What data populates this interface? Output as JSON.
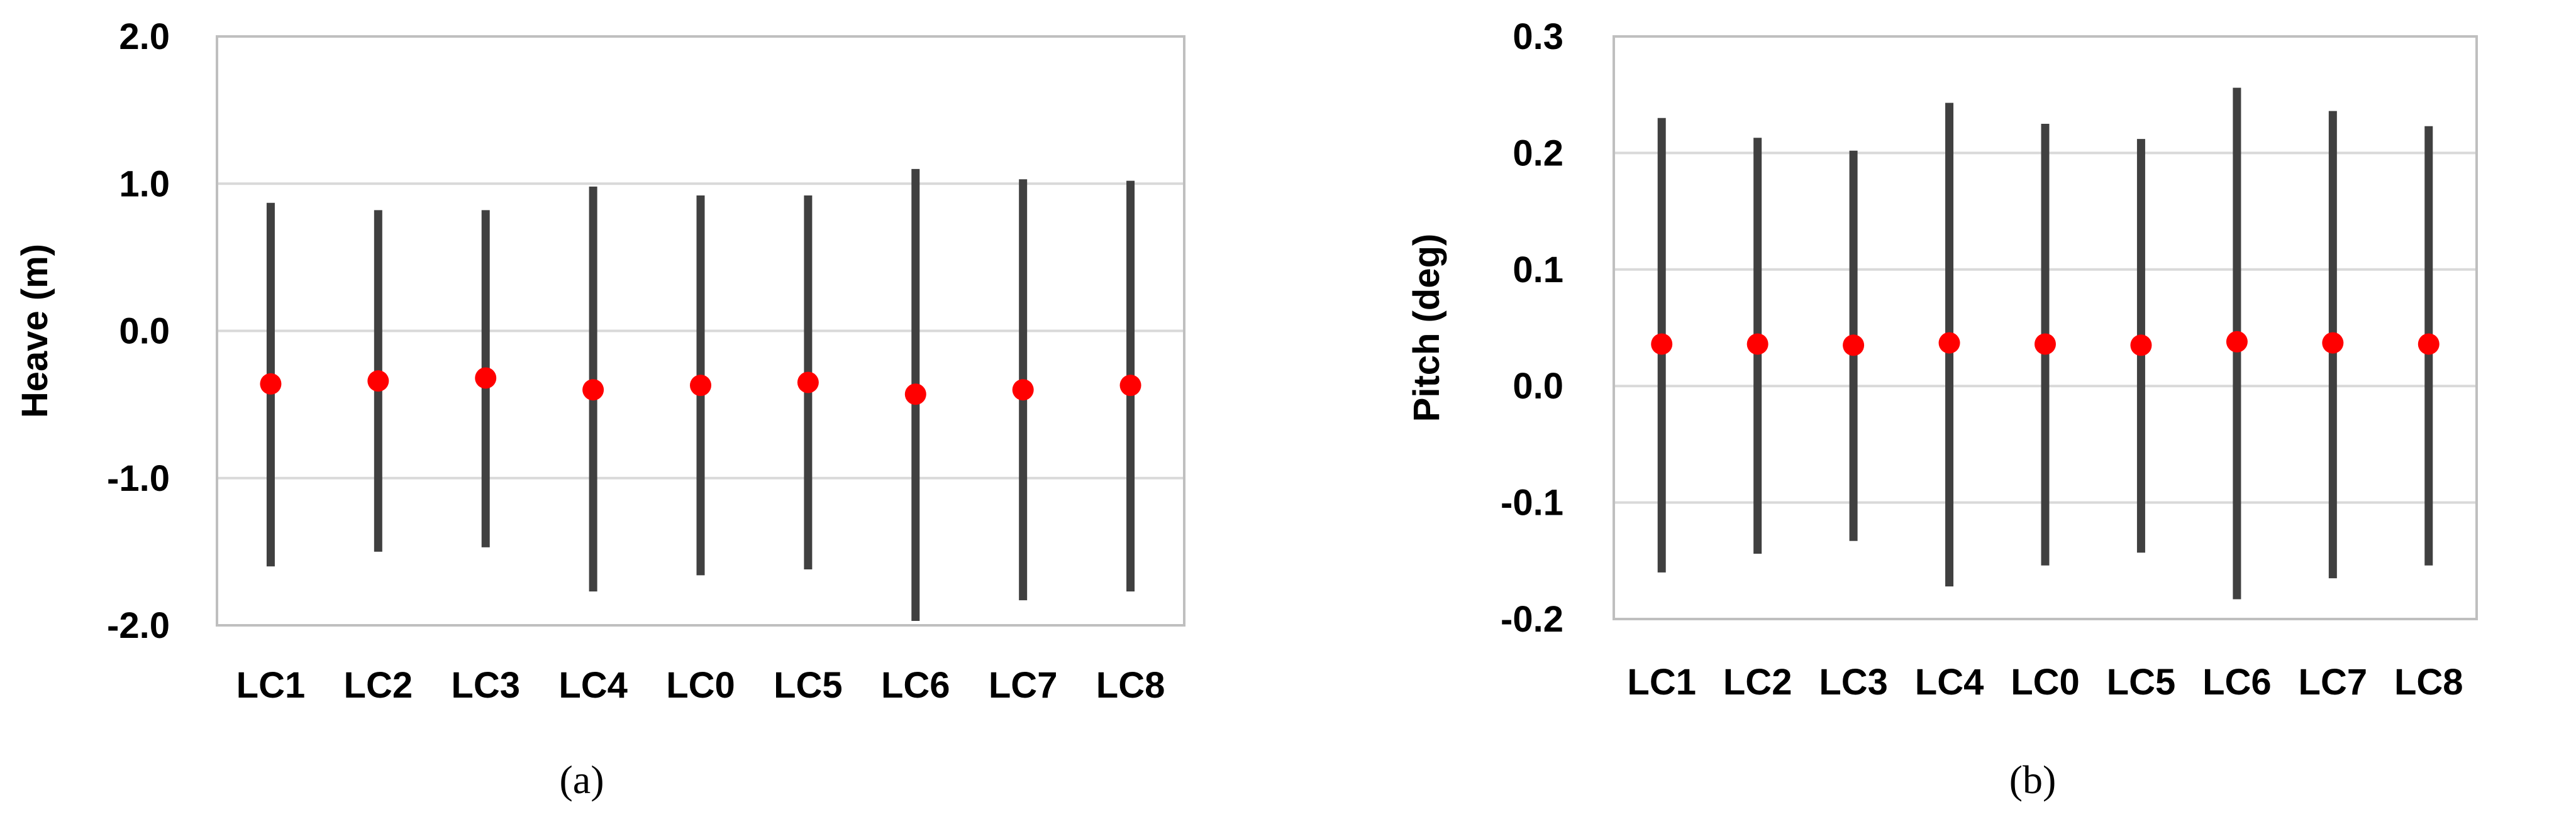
{
  "chart_data": [
    {
      "type": "range",
      "panel_caption": "(a)",
      "ylabel": "Heave (m)",
      "xlabel": "",
      "categories": [
        "LC1",
        "LC2",
        "LC3",
        "LC4",
        "LC0",
        "LC5",
        "LC6",
        "LC7",
        "LC8"
      ],
      "max": [
        0.87,
        0.82,
        0.82,
        0.98,
        0.92,
        0.92,
        1.1,
        1.03,
        1.02
      ],
      "min": [
        -1.6,
        -1.5,
        -1.47,
        -1.77,
        -1.66,
        -1.62,
        -1.97,
        -1.83,
        -1.77
      ],
      "mean": [
        -0.36,
        -0.34,
        -0.32,
        -0.4,
        -0.37,
        -0.35,
        -0.43,
        -0.4,
        -0.37
      ],
      "ylim": [
        -2.0,
        2.0
      ],
      "yticks": [
        "2.0",
        "1.0",
        "0.0",
        "-1.0",
        "-2.0"
      ],
      "ytick_values": [
        2.0,
        1.0,
        0.0,
        -1.0,
        -2.0
      ],
      "grid": true,
      "colors": {
        "range": "#404040",
        "mean": "#ff0000",
        "grid": "#d9d9d9",
        "frame": "#bfbfbf"
      }
    },
    {
      "type": "range",
      "panel_caption": "(b)",
      "ylabel": "Pitch (deg)",
      "xlabel": "",
      "categories": [
        "LC1",
        "LC2",
        "LC3",
        "LC4",
        "LC0",
        "LC5",
        "LC6",
        "LC7",
        "LC8"
      ],
      "max": [
        0.23,
        0.213,
        0.202,
        0.243,
        0.225,
        0.212,
        0.256,
        0.236,
        0.223
      ],
      "min": [
        -0.16,
        -0.144,
        -0.133,
        -0.172,
        -0.154,
        -0.143,
        -0.183,
        -0.165,
        -0.154
      ],
      "mean": [
        0.036,
        0.036,
        0.035,
        0.037,
        0.036,
        0.035,
        0.038,
        0.037,
        0.036
      ],
      "ylim": [
        -0.2,
        0.3
      ],
      "yticks": [
        "0.3",
        "0.2",
        "0.1",
        "0.0",
        "-0.1",
        "-0.2"
      ],
      "ytick_values": [
        0.3,
        0.2,
        0.1,
        0.0,
        -0.1,
        -0.2
      ],
      "grid": true,
      "colors": {
        "range": "#404040",
        "mean": "#ff0000",
        "grid": "#d9d9d9",
        "frame": "#bfbfbf"
      }
    }
  ]
}
